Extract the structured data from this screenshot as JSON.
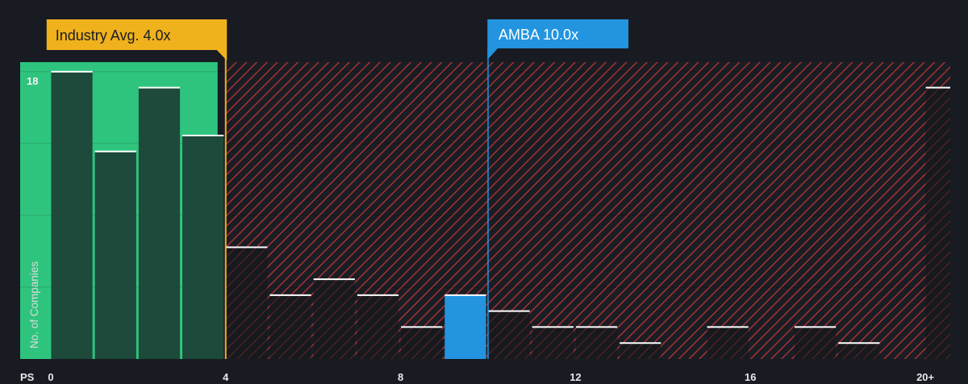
{
  "chart_data": {
    "type": "bar",
    "xlabel": "PS",
    "ylabel": "No. of Companies",
    "xlim": [
      -0.7,
      20.57
    ],
    "ylim": [
      0,
      18.6
    ],
    "grid": true,
    "y_gridlines": [
      4.5,
      9,
      13.5,
      18
    ],
    "yticks": [
      {
        "value": 18,
        "label": "18"
      }
    ],
    "xticks": [
      {
        "value": 0,
        "label": "0"
      },
      {
        "value": 4,
        "label": "4"
      },
      {
        "value": 8,
        "label": "8"
      },
      {
        "value": 12,
        "label": "12"
      },
      {
        "value": 16,
        "label": "16"
      },
      {
        "value": 20,
        "label": "20+"
      }
    ],
    "bins": [
      {
        "x0": 0,
        "x1": 1,
        "count": 18
      },
      {
        "x0": 1,
        "x1": 2,
        "count": 13
      },
      {
        "x0": 2,
        "x1": 3,
        "count": 17
      },
      {
        "x0": 3,
        "x1": 4,
        "count": 14
      },
      {
        "x0": 4,
        "x1": 5,
        "count": 7
      },
      {
        "x0": 5,
        "x1": 6,
        "count": 4
      },
      {
        "x0": 6,
        "x1": 7,
        "count": 5
      },
      {
        "x0": 7,
        "x1": 8,
        "count": 4
      },
      {
        "x0": 8,
        "x1": 9,
        "count": 2
      },
      {
        "x0": 9,
        "x1": 10,
        "count": 4,
        "highlight": true
      },
      {
        "x0": 10,
        "x1": 11,
        "count": 3
      },
      {
        "x0": 11,
        "x1": 12,
        "count": 2
      },
      {
        "x0": 12,
        "x1": 13,
        "count": 2
      },
      {
        "x0": 13,
        "x1": 14,
        "count": 1
      },
      {
        "x0": 14,
        "x1": 15,
        "count": 0
      },
      {
        "x0": 15,
        "x1": 16,
        "count": 2
      },
      {
        "x0": 16,
        "x1": 17,
        "count": 0
      },
      {
        "x0": 17,
        "x1": 18,
        "count": 2
      },
      {
        "x0": 18,
        "x1": 19,
        "count": 1
      },
      {
        "x0": 19,
        "x1": 20,
        "count": 0
      },
      {
        "x0": 20,
        "x1": 21,
        "count": 17
      }
    ],
    "industry_avg": {
      "value": 4.0,
      "label": "Industry Avg. 4.0x"
    },
    "company": {
      "value": 10.0,
      "label": "AMBA 10.0x"
    }
  },
  "colors": {
    "background": "#181b22",
    "good_region": "#2fc47e",
    "good_bar": "#1d4a3a",
    "hatch_stripe": "#b83535",
    "hatch_background": "#1b1d24",
    "bad_bar": "#14161c",
    "highlight_bar": "#2394df",
    "bar_top": "#ffffff",
    "gridline": "#000000",
    "industry_marker": "#efb11c",
    "industry_label_text": "#1a1d24",
    "company_marker": "#2394df",
    "company_label_text": "#ffffff"
  }
}
